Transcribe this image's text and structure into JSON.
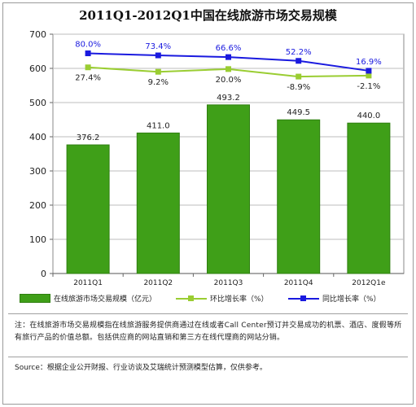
{
  "title": "2011Q1-2012Q1中国在线旅游市场交易规模",
  "chart_data": {
    "type": "bar",
    "categories": [
      "2011Q1",
      "2011Q2",
      "2011Q3",
      "2011Q4",
      "2012Q1e"
    ],
    "bar_series": {
      "name": "在线旅游市场交易规模（亿元）",
      "values": [
        376.2,
        411.0,
        493.2,
        449.5,
        440.0
      ],
      "labels": [
        "376.2",
        "411.0",
        "493.2",
        "449.5",
        "440.0"
      ],
      "color": "#3f9f18"
    },
    "line_series": [
      {
        "name": "环比增长率（%）",
        "values": [
          27.4,
          9.2,
          20.0,
          -8.9,
          -2.1
        ],
        "labels": [
          "27.4%",
          "9.2%",
          "20.0%",
          "-8.9%",
          "-2.1%"
        ],
        "plot_y": [
          603,
          590,
          598,
          576,
          579
        ],
        "color": "#9acd32"
      },
      {
        "name": "同比增长率（%）",
        "values": [
          80.0,
          73.4,
          66.6,
          52.2,
          16.9
        ],
        "labels": [
          "80.0%",
          "73.4%",
          "66.6%",
          "52.2%",
          "16.9%"
        ],
        "plot_y": [
          644,
          638,
          633,
          622,
          593
        ],
        "color": "#1a1adf"
      }
    ],
    "y_ticks": [
      0,
      100,
      200,
      300,
      400,
      500,
      600,
      700
    ],
    "ylim": [
      0,
      700
    ],
    "grid": true
  },
  "legend": {
    "bar_label": "在线旅游市场交易规模（亿元）",
    "qoq_label": "环比增长率（%）",
    "yoy_label": "同比增长率（%）"
  },
  "note": "注：在线旅游市场交易规模指在线旅游服务提供商通过在线或者Call Center预订并交易成功的机票、酒店、度假等所有旅行产品的价值总额。包括供应商的网站直销和第三方在线代理商的网站分销。",
  "source": "Source：根据企业公开财报、行业访谈及艾瑞统计预测模型估算，仅供参考。"
}
